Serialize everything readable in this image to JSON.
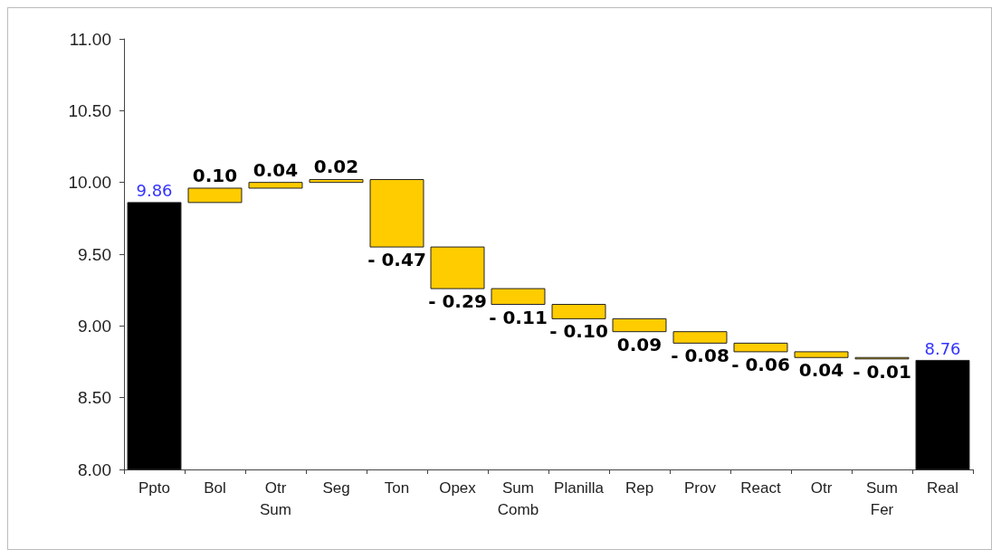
{
  "chart_data": {
    "type": "bar",
    "categories": [
      "Ppto",
      "Bol",
      "Otr Sum",
      "Seg",
      "Ton",
      "Opex",
      "Sum Comb",
      "Planilla",
      "Rep",
      "Prov",
      "React",
      "Otr",
      "Sum Fer",
      "Real"
    ],
    "values": [
      9.86,
      0.1,
      0.04,
      0.02,
      -0.47,
      -0.29,
      -0.11,
      -0.1,
      -0.09,
      -0.08,
      -0.06,
      -0.04,
      -0.01,
      8.76
    ],
    "base": [
      null,
      9.86,
      9.96,
      10.0,
      10.02,
      9.55,
      9.26,
      9.15,
      9.05,
      8.96,
      8.88,
      8.82,
      8.78,
      null
    ],
    "colors": [
      "#000000",
      "#ffcc00",
      "#ffcc00",
      "#ffcc00",
      "#ffcc00",
      "#ffcc00",
      "#ffcc00",
      "#ffcc00",
      "#ffcc00",
      "#ffcc00",
      "#ffcc00",
      "#ffcc00",
      "#ffcc00",
      "#000000"
    ],
    "value_labels": [
      "9.86",
      "0.10",
      "0.04",
      "0.02",
      "- 0.47",
      "- 0.29",
      "- 0.11",
      "- 0.10",
      "0.09",
      "- 0.08",
      "- 0.06",
      "0.04",
      "- 0.01",
      "8.76"
    ],
    "ylim": [
      8,
      11
    ],
    "yticks": [
      {
        "value": 8,
        "label": "8.00"
      },
      {
        "value": 8.5,
        "label": "8.50"
      },
      {
        "value": 9,
        "label": "9.00"
      },
      {
        "value": 9.5,
        "label": "9.50"
      },
      {
        "value": 10,
        "label": "10.00"
      },
      {
        "value": 10.5,
        "label": "10.50"
      },
      {
        "value": 11,
        "label": "11.00"
      }
    ],
    "grid": false
  }
}
